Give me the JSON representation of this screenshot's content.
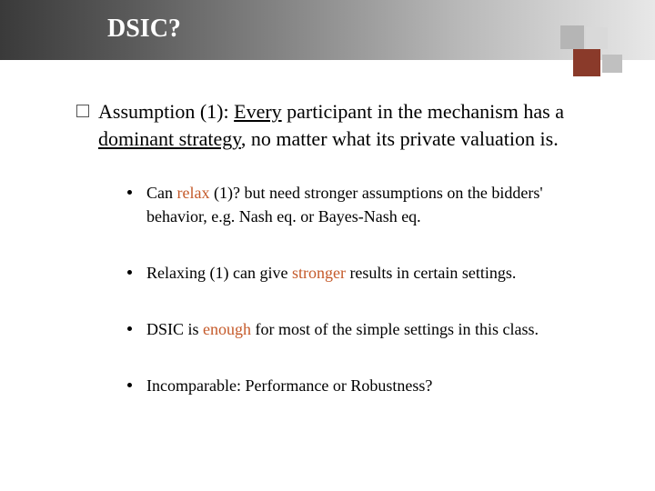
{
  "colors": {
    "accent": "#c55a2a",
    "logo_brown": "#8a3a2a",
    "title_gradient_start": "#3a3a3a",
    "title_gradient_end": "#e8e8e8",
    "background": "#ffffff",
    "text": "#000000"
  },
  "title": "DSIC?",
  "assumption": {
    "prefix": "Assumption (1): ",
    "underlined1": "Every",
    "mid1": " participant in the mechanism has a ",
    "underlined2": "dominant strategy",
    "suffix": ", no matter what its private valuation is."
  },
  "bullets": [
    {
      "parts": [
        {
          "text": "Can ",
          "accent": false
        },
        {
          "text": "relax",
          "accent": true
        },
        {
          "text": " (1)? but need stronger assumptions on the bidders' behavior, e.g. Nash eq. or Bayes-Nash eq.",
          "accent": false
        }
      ]
    },
    {
      "parts": [
        {
          "text": "Relaxing (1) can give ",
          "accent": false
        },
        {
          "text": "stronger",
          "accent": true
        },
        {
          "text": " results in certain settings.",
          "accent": false
        }
      ]
    },
    {
      "parts": [
        {
          "text": "DSIC is ",
          "accent": false
        },
        {
          "text": "enough",
          "accent": true
        },
        {
          "text": " for most of the simple settings in this class.",
          "accent": false
        }
      ]
    },
    {
      "parts": [
        {
          "text": "Incomparable: Performance or Robustness?",
          "accent": false
        }
      ]
    }
  ]
}
